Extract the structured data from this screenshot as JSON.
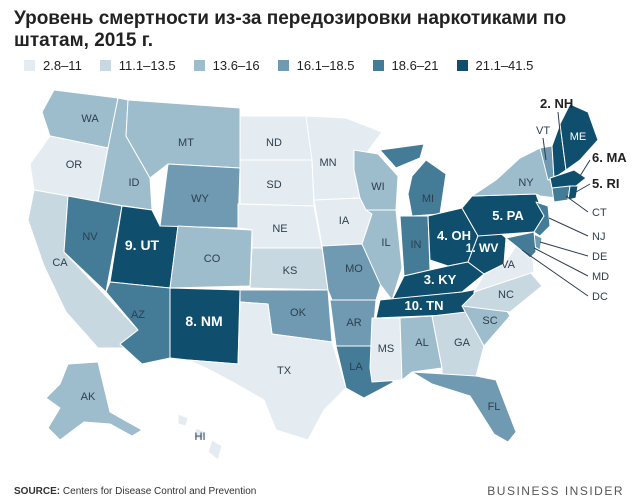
{
  "title": "Уровень смертности из-за передозировки наркотиками по штатам, 2015 г.",
  "colors": {
    "c1": "#e4ecf1",
    "c2": "#c7d8e1",
    "c3": "#9dbccc",
    "c4": "#6f9ab1",
    "c5": "#447b97",
    "c6": "#0f4f6d",
    "ocean": "#ffffff",
    "border": "#ffffff"
  },
  "legend": [
    {
      "label": "2.8–11",
      "color": "#e4ecf1"
    },
    {
      "label": "11.1–13.5",
      "color": "#c7d8e1"
    },
    {
      "label": "13.6–16",
      "color": "#9dbccc"
    },
    {
      "label": "16.1–18.5",
      "color": "#6f9ab1"
    },
    {
      "label": "18.6–21",
      "color": "#447b97"
    },
    {
      "label": "21.1–41.5",
      "color": "#0f4f6d"
    }
  ],
  "states": {
    "WA": "WA",
    "OR": "OR",
    "CA": "CA",
    "ID": "ID",
    "NV": "NV",
    "UT": "9. UT",
    "AZ": "AZ",
    "MT": "MT",
    "WY": "WY",
    "CO": "CO",
    "NM": "8. NM",
    "ND": "ND",
    "SD": "SD",
    "NE": "NE",
    "KS": "KS",
    "OK": "OK",
    "TX": "TX",
    "MN": "MN",
    "IA": "IA",
    "MO": "MO",
    "AR": "AR",
    "LA": "LA",
    "WI": "WI",
    "IL": "IL",
    "MI": "MI",
    "IN": "IN",
    "OH": "4. OH",
    "KY": "3. KY",
    "TN": "10. TN",
    "MS": "MS",
    "AL": "AL",
    "GA": "GA",
    "FL": "FL",
    "SC": "SC",
    "NC": "NC",
    "VA": "VA",
    "WV": "1. WV",
    "PA": "5. PA",
    "NY": "NY",
    "VT": "VT",
    "NH": "2. NH",
    "ME": "ME",
    "MA": "6. MA",
    "RI": "5. RI",
    "CT": "CT",
    "NJ": "NJ",
    "DE": "DE",
    "MD": "MD",
    "DC": "DC",
    "AK": "AK",
    "HI": "HI"
  },
  "source_label": "SOURCE:",
  "source_text": "Centers for Disease Control and Prevention",
  "brand": "BUSINESS INSIDER"
}
